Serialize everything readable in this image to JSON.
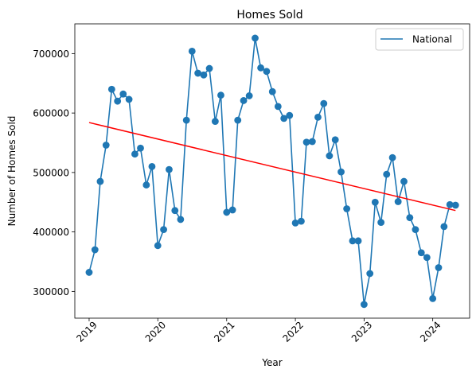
{
  "chart_data": {
    "type": "line",
    "title": "Homes Sold",
    "xlabel": "Year",
    "ylabel": "Number of Homes Sold",
    "x_ticks": [
      "2019",
      "2020",
      "2021",
      "2022",
      "2023",
      "2024"
    ],
    "y_ticks": [
      "300000",
      "400000",
      "500000",
      "600000",
      "700000"
    ],
    "xlim": [
      "2018-10-17",
      "2024-07-15"
    ],
    "ylim": [
      255000,
      750000
    ],
    "grid": false,
    "legend_position": "top-right",
    "colors": {
      "series": "#1f77b4",
      "trend": "#ff0000",
      "axes": "#000000"
    },
    "series": [
      {
        "name": "National",
        "x": [
          "2019-01-01",
          "2019-02-01",
          "2019-03-01",
          "2019-04-01",
          "2019-05-01",
          "2019-06-01",
          "2019-07-01",
          "2019-08-01",
          "2019-09-01",
          "2019-10-01",
          "2019-11-01",
          "2019-12-01",
          "2020-01-01",
          "2020-02-01",
          "2020-03-01",
          "2020-04-01",
          "2020-05-01",
          "2020-06-01",
          "2020-07-01",
          "2020-08-01",
          "2020-09-01",
          "2020-10-01",
          "2020-11-01",
          "2020-12-01",
          "2021-01-01",
          "2021-02-01",
          "2021-03-01",
          "2021-04-01",
          "2021-05-01",
          "2021-06-01",
          "2021-07-01",
          "2021-08-01",
          "2021-09-01",
          "2021-10-01",
          "2021-11-01",
          "2021-12-01",
          "2022-01-01",
          "2022-02-01",
          "2022-03-01",
          "2022-04-01",
          "2022-05-01",
          "2022-06-01",
          "2022-07-01",
          "2022-08-01",
          "2022-09-01",
          "2022-10-01",
          "2022-11-01",
          "2022-12-01",
          "2023-01-01",
          "2023-02-01",
          "2023-03-01",
          "2023-04-01",
          "2023-05-01",
          "2023-06-01",
          "2023-07-01",
          "2023-08-01",
          "2023-09-01",
          "2023-10-01",
          "2023-11-01",
          "2023-12-01",
          "2024-01-01",
          "2024-02-01",
          "2024-03-01",
          "2024-04-01",
          "2024-05-01"
        ],
        "values": [
          332000,
          370000,
          485000,
          546000,
          640000,
          620000,
          632000,
          623000,
          531000,
          541000,
          479000,
          510000,
          377000,
          404000,
          505000,
          436000,
          421000,
          588000,
          704000,
          667000,
          664000,
          675000,
          586000,
          630000,
          433000,
          437000,
          588000,
          621000,
          629000,
          726000,
          676000,
          670000,
          636000,
          611000,
          591000,
          596000,
          415000,
          418000,
          551000,
          552000,
          593000,
          616000,
          528000,
          555000,
          501000,
          439000,
          385000,
          385000,
          278000,
          330000,
          450000,
          416000,
          497000,
          525000,
          451000,
          485000,
          424000,
          404000,
          365000,
          357000,
          288000,
          340000,
          409000,
          446000,
          445000
        ]
      },
      {
        "name": "",
        "type": "trend",
        "x": [
          "2019-01-01",
          "2024-05-01"
        ],
        "values": [
          584000,
          436000
        ]
      }
    ]
  }
}
